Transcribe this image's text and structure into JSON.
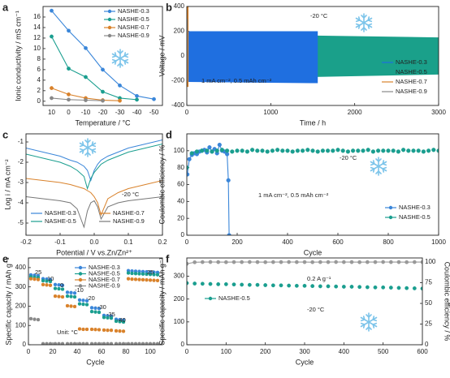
{
  "chart_data": [
    {
      "type": "line",
      "label": "a",
      "xlabel": "Temperature / °C",
      "ylabel": "Ionic conductivity / mS cm⁻¹",
      "categories": [
        "10",
        "0",
        "-10",
        "-20",
        "-30",
        "-40",
        "-50"
      ],
      "ylim": [
        -0.8,
        18
      ],
      "yticks": [
        0,
        2,
        4,
        6,
        8,
        10,
        12,
        14,
        16
      ],
      "series": [
        {
          "name": "NASHE-0.3",
          "color": "#3a86d9",
          "line": true,
          "marker": true,
          "values": [
            17.2,
            13.4,
            10.1,
            6.0,
            3.0,
            1.0,
            0.4
          ]
        },
        {
          "name": "NASHE-0.5",
          "color": "#1a9e8f",
          "line": true,
          "marker": true,
          "values": [
            12.3,
            6.2,
            4.6,
            1.8,
            0.6,
            0.3,
            null
          ]
        },
        {
          "name": "NASHE-0.7",
          "color": "#d9822b",
          "line": true,
          "marker": true,
          "values": [
            2.5,
            1.3,
            0.6,
            0.2,
            0.1,
            null,
            null
          ]
        },
        {
          "name": "NASHE-0.9",
          "color": "#888888",
          "line": true,
          "marker": true,
          "values": [
            0.6,
            0.3,
            0.2,
            0.1,
            null,
            null,
            null
          ]
        }
      ],
      "annotations": []
    },
    {
      "type": "band",
      "label": "b",
      "xlabel": "Time / h",
      "ylabel": "Voltage / mV",
      "xlim": [
        0,
        3000
      ],
      "xticks": [
        0,
        1000,
        2000,
        3000
      ],
      "ylim": [
        -400,
        400
      ],
      "yticks": [
        -400,
        -200,
        0,
        200,
        400
      ],
      "series": [
        {
          "name": "NASHE-0.3",
          "color": "#1f6fe0",
          "x": [
            0,
            1560
          ],
          "high": [
            200,
            200
          ],
          "low": [
            -210,
            -220
          ]
        },
        {
          "name": "NASHE-0.5",
          "color": "#1aa08a",
          "x": [
            0,
            3000
          ],
          "high": [
            180,
            150
          ],
          "low": [
            -190,
            -150
          ]
        },
        {
          "name": "NASHE-0.7",
          "color": "#d9822b",
          "x": [
            0,
            20
          ],
          "high": [
            400,
            400
          ],
          "low": [
            -250,
            -250
          ]
        },
        {
          "name": "NASHE-0.9",
          "color": "#888888",
          "x": [
            0,
            10
          ],
          "high": [
            300,
            300
          ],
          "low": [
            -200,
            -200
          ]
        }
      ],
      "draw_order": [
        1,
        0,
        2,
        3
      ],
      "annotations": [
        "-20 °C",
        "1 mA cm⁻², 0.5 mAh cm⁻²"
      ]
    },
    {
      "type": "line",
      "label": "c",
      "xlabel": "Potential / V vs.Zn/Zn²⁺",
      "ylabel": "Log i / mA cm⁻²",
      "x": [
        -0.2,
        -0.15,
        -0.1,
        -0.07,
        -0.05,
        -0.03,
        -0.02,
        -0.01,
        0,
        0.01,
        0.02,
        0.04,
        0.07,
        0.1,
        0.15,
        0.2
      ],
      "xlim": [
        -0.2,
        0.2
      ],
      "xticks": [
        -0.2,
        -0.1,
        {
          "value": 0,
          "label": "0.0"
        },
        0.1,
        0.2
      ],
      "ylim": [
        -5.6,
        -0.6
      ],
      "yticks": [
        -5,
        -4,
        -3,
        -2,
        -1
      ],
      "series": [
        {
          "name": "NASHE-0.3",
          "color": "#3a86d9",
          "line": true,
          "marker": false,
          "values": [
            -1.3,
            -1.5,
            -1.7,
            -1.9,
            -2.0,
            -2.2,
            -2.4,
            -2.9,
            -2.4,
            -2.1,
            -1.9,
            -1.7,
            -1.5,
            -1.3,
            -1.1,
            -0.9
          ]
        },
        {
          "name": "NASHE-0.7",
          "color": "#d9822b",
          "line": true,
          "marker": false,
          "values": [
            -2.8,
            -2.9,
            -3.0,
            -3.1,
            -3.2,
            -3.3,
            -3.4,
            -3.5,
            -3.7,
            -4.0,
            -4.6,
            -3.8,
            -3.5,
            -3.3,
            -3.1,
            -2.9
          ]
        },
        {
          "name": "NASHE-0.5",
          "color": "#1a9e8f",
          "line": true,
          "marker": false,
          "values": [
            -1.6,
            -1.8,
            -2.0,
            -2.2,
            -2.4,
            -2.7,
            -3.3,
            -2.8,
            -2.5,
            -2.3,
            -2.1,
            -1.9,
            -1.7,
            -1.5,
            -1.3,
            -1.1
          ]
        },
        {
          "name": "NASHE-0.9",
          "color": "#777777",
          "line": true,
          "marker": false,
          "values": [
            -3.7,
            -3.8,
            -3.9,
            -4.0,
            -4.3,
            -5.2,
            -4.4,
            -4.0,
            -3.9,
            -4.2,
            -4.8,
            -4.2,
            -4.0,
            -3.9,
            -3.8,
            -3.7
          ]
        }
      ],
      "annotations": [
        "-20 °C"
      ]
    },
    {
      "type": "scatter",
      "label": "d",
      "xlabel": "Cycle",
      "ylabel": "Coulombic efficiency / %",
      "xlim": [
        0,
        1000
      ],
      "xticks": [
        0,
        200,
        400,
        600,
        800,
        1000
      ],
      "ylim": [
        0,
        120
      ],
      "yticks": [
        0,
        20,
        40,
        60,
        80,
        100
      ],
      "series": [
        {
          "name": "NASHE-0.3",
          "color": "#3a86d9",
          "line": true,
          "marker": true,
          "x": [
            2,
            10,
            20,
            30,
            40,
            50,
            60,
            70,
            80,
            90,
            100,
            110,
            120,
            130,
            140,
            150,
            160,
            165,
            168
          ],
          "values": [
            72,
            90,
            95,
            97,
            96,
            99,
            100,
            101,
            98,
            104,
            99,
            102,
            97,
            107,
            100,
            99,
            96,
            65,
            0
          ]
        },
        {
          "name": "NASHE-0.5",
          "color": "#1a9e8f",
          "line": false,
          "marker": true,
          "x": [
            0,
            20,
            40,
            60,
            80,
            100,
            120,
            140,
            160,
            180,
            200,
            220,
            240,
            260,
            280,
            300,
            320,
            340,
            360,
            380,
            400,
            420,
            440,
            460,
            480,
            500,
            520,
            540,
            560,
            580,
            600,
            620,
            640,
            660,
            680,
            700,
            720,
            740,
            760,
            780,
            800,
            820,
            840,
            860,
            880,
            900,
            920,
            940,
            960,
            980,
            1000
          ],
          "values": [
            80,
            97,
            99,
            100,
            100,
            99,
            100,
            101,
            100,
            99,
            100,
            100,
            99,
            101,
            100,
            100,
            99,
            100,
            101,
            100,
            100,
            99,
            100,
            100,
            101,
            100,
            99,
            100,
            100,
            100,
            101,
            100,
            99,
            100,
            100,
            100,
            101,
            99,
            100,
            100,
            100,
            100,
            99,
            101,
            100,
            100,
            100,
            99,
            100,
            101,
            100
          ]
        }
      ],
      "annotations": [
        "-20 °C",
        "1 mA cm⁻², 0.5 mAh cm⁻²"
      ]
    },
    {
      "type": "scatter",
      "label": "e",
      "xlabel": "Cycle",
      "ylabel": "Specific capacity / mAh g⁻¹",
      "x": [
        2,
        5,
        8,
        12,
        15,
        18,
        22,
        25,
        28,
        32,
        35,
        38,
        42,
        45,
        48,
        52,
        55,
        58,
        62,
        65,
        68,
        72,
        75,
        78,
        82,
        85,
        88,
        91,
        94,
        97,
        100,
        103,
        106
      ],
      "xlim": [
        0,
        110
      ],
      "xticks": [
        0,
        20,
        40,
        60,
        80,
        100
      ],
      "ylim": [
        0,
        450
      ],
      "yticks": [
        0,
        100,
        200,
        300,
        400
      ],
      "series": [
        {
          "name": "NASHE-0.3",
          "color": "#3a86d9",
          "line": false,
          "marker": true,
          "values": [
            362,
            360,
            358,
            342,
            340,
            338,
            312,
            310,
            308,
            272,
            270,
            268,
            232,
            230,
            228,
            192,
            190,
            188,
            152,
            150,
            148,
            132,
            130,
            128,
            384,
            382,
            381,
            380,
            379,
            378,
            377,
            376,
            375
          ]
        },
        {
          "name": "NASHE-0.5",
          "color": "#1a9e8f",
          "line": false,
          "marker": true,
          "values": [
            352,
            350,
            348,
            332,
            330,
            328,
            292,
            290,
            288,
            252,
            250,
            248,
            212,
            210,
            208,
            172,
            170,
            168,
            142,
            140,
            138,
            122,
            120,
            118,
            372,
            370,
            369,
            368,
            367,
            366,
            365,
            364,
            363
          ]
        },
        {
          "name": "NASHE-0.7",
          "color": "#d9822b",
          "line": false,
          "marker": true,
          "values": [
            342,
            340,
            338,
            312,
            310,
            308,
            252,
            250,
            248,
            202,
            200,
            198,
            82,
            80,
            80,
            80,
            79,
            78,
            76,
            75,
            75,
            72,
            71,
            70,
            342,
            340,
            339,
            338,
            337,
            336,
            335,
            334,
            333
          ]
        },
        {
          "name": "NASHE-0.9",
          "color": "#888888",
          "line": false,
          "marker": true,
          "values": [
            135,
            132,
            130,
            5,
            5,
            5,
            5,
            5,
            5,
            5,
            5,
            5,
            5,
            5,
            5,
            5,
            5,
            5,
            5,
            5,
            5,
            5,
            5,
            5,
            5,
            5,
            5,
            5,
            5,
            5,
            5,
            5,
            5
          ]
        }
      ],
      "annotations": [
        "25",
        "10",
        "0",
        "-10",
        "-20",
        "-30",
        "-35",
        "-40",
        "25",
        "Unit: °C"
      ]
    },
    {
      "type": "scatter",
      "label": "f",
      "xlabel": "Cycle",
      "ylabel": "Specific capacity / mAh g⁻¹",
      "y2label": "Coulombic efficiency / %",
      "x": [
        0,
        20,
        40,
        60,
        80,
        100,
        120,
        140,
        160,
        180,
        200,
        220,
        240,
        260,
        280,
        300,
        320,
        340,
        360,
        380,
        400,
        420,
        440,
        460,
        480,
        500,
        520,
        540,
        560,
        580,
        600
      ],
      "xlim": [
        0,
        600
      ],
      "xticks": [
        0,
        100,
        200,
        300,
        400,
        500,
        600
      ],
      "ylim": [
        0,
        380
      ],
      "yticks": [
        0,
        100,
        200,
        300
      ],
      "y2lim": [
        0,
        105
      ],
      "y2ticks": [
        0,
        25,
        50,
        75,
        100
      ],
      "series": [
        {
          "name": "NASHE-0.5",
          "color": "#1a9e8f",
          "line": false,
          "marker": true,
          "values": [
            270,
            268,
            267,
            266,
            265,
            265,
            264,
            263,
            262,
            262,
            261,
            260,
            260,
            259,
            258,
            258,
            257,
            256,
            256,
            255,
            254,
            254,
            253,
            252,
            251,
            251,
            250,
            249,
            248,
            247,
            246
          ]
        },
        {
          "color": "#999999",
          "axis": "y2",
          "line": true,
          "marker": true,
          "values": [
            98,
            99.8,
            100,
            100.1,
            100,
            99.9,
            100,
            100,
            100.1,
            100,
            99.9,
            100,
            100,
            100.1,
            100,
            100,
            99.9,
            100,
            100,
            100.1,
            100,
            100,
            99.9,
            100,
            100,
            100.1,
            100,
            100,
            99.9,
            100,
            100
          ]
        }
      ],
      "annotations": [
        "0.2 A g⁻¹",
        "-20 °C"
      ]
    }
  ]
}
